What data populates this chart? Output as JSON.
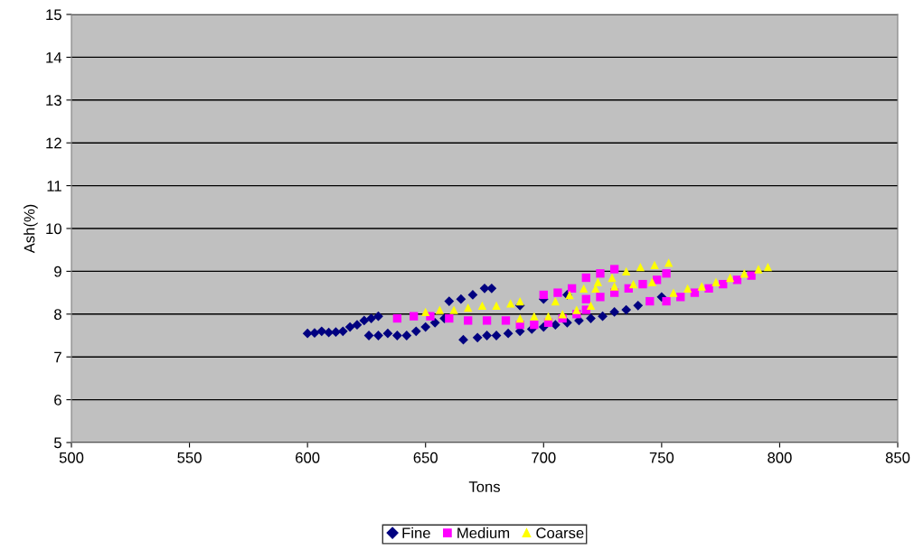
{
  "chart_data": {
    "type": "scatter",
    "xlabel": "Tons",
    "ylabel": "Ash(%)",
    "xlim": [
      500,
      850
    ],
    "xticks": [
      500,
      550,
      600,
      650,
      700,
      750,
      800,
      850
    ],
    "ylim": [
      5,
      15
    ],
    "yticks": [
      5,
      6,
      7,
      8,
      9,
      10,
      11,
      12,
      13,
      14,
      15
    ],
    "grid": "y",
    "legend": "bottom",
    "series": [
      {
        "name": "Fine",
        "color": "#000080",
        "marker": "diamond",
        "x": [
          600,
          603,
          606,
          609,
          612,
          615,
          618,
          621,
          624,
          627,
          630,
          626,
          630,
          634,
          638,
          642,
          646,
          650,
          654,
          658,
          660,
          665,
          670,
          675,
          678,
          666,
          672,
          676,
          680,
          685,
          690,
          695,
          700,
          705,
          710,
          715,
          720,
          725,
          730,
          735,
          740,
          750,
          690,
          700,
          710
        ],
        "values": [
          7.55,
          7.56,
          7.6,
          7.57,
          7.58,
          7.6,
          7.7,
          7.75,
          7.85,
          7.9,
          7.95,
          7.5,
          7.5,
          7.55,
          7.5,
          7.5,
          7.6,
          7.7,
          7.8,
          7.9,
          8.3,
          8.35,
          8.45,
          8.6,
          8.6,
          7.4,
          7.45,
          7.5,
          7.5,
          7.55,
          7.6,
          7.65,
          7.7,
          7.75,
          7.8,
          7.85,
          7.9,
          7.95,
          8.05,
          8.1,
          8.2,
          8.4,
          8.2,
          8.35,
          8.45
        ]
      },
      {
        "name": "Medium",
        "color": "#ff00ff",
        "marker": "square",
        "x": [
          638,
          645,
          652,
          660,
          668,
          676,
          684,
          690,
          696,
          702,
          708,
          714,
          718,
          700,
          706,
          712,
          718,
          724,
          730,
          718,
          724,
          730,
          736,
          742,
          748,
          752,
          745,
          752,
          758,
          764,
          770,
          776,
          782,
          788
        ],
        "values": [
          7.9,
          7.95,
          7.95,
          7.9,
          7.85,
          7.85,
          7.85,
          7.75,
          7.75,
          7.8,
          7.9,
          8.0,
          8.1,
          8.45,
          8.5,
          8.6,
          8.85,
          8.95,
          9.05,
          8.35,
          8.4,
          8.5,
          8.6,
          8.7,
          8.8,
          8.95,
          8.3,
          8.3,
          8.4,
          8.5,
          8.6,
          8.7,
          8.8,
          8.9
        ]
      },
      {
        "name": "Coarse",
        "color": "#ffff00",
        "marker": "triangle",
        "x": [
          650,
          656,
          662,
          668,
          674,
          680,
          686,
          690,
          690,
          696,
          702,
          708,
          714,
          720,
          705,
          711,
          717,
          723,
          729,
          735,
          741,
          747,
          753,
          722,
          730,
          738,
          746,
          755,
          761,
          767,
          773,
          779,
          785,
          791,
          795
        ],
        "values": [
          8.05,
          8.1,
          8.1,
          8.15,
          8.2,
          8.2,
          8.25,
          8.3,
          7.9,
          7.95,
          7.95,
          8.0,
          8.1,
          8.2,
          8.3,
          8.45,
          8.6,
          8.75,
          8.85,
          9.0,
          9.1,
          9.15,
          9.2,
          8.6,
          8.65,
          8.7,
          8.75,
          8.5,
          8.6,
          8.65,
          8.75,
          8.85,
          8.95,
          9.05,
          9.1
        ]
      }
    ]
  }
}
